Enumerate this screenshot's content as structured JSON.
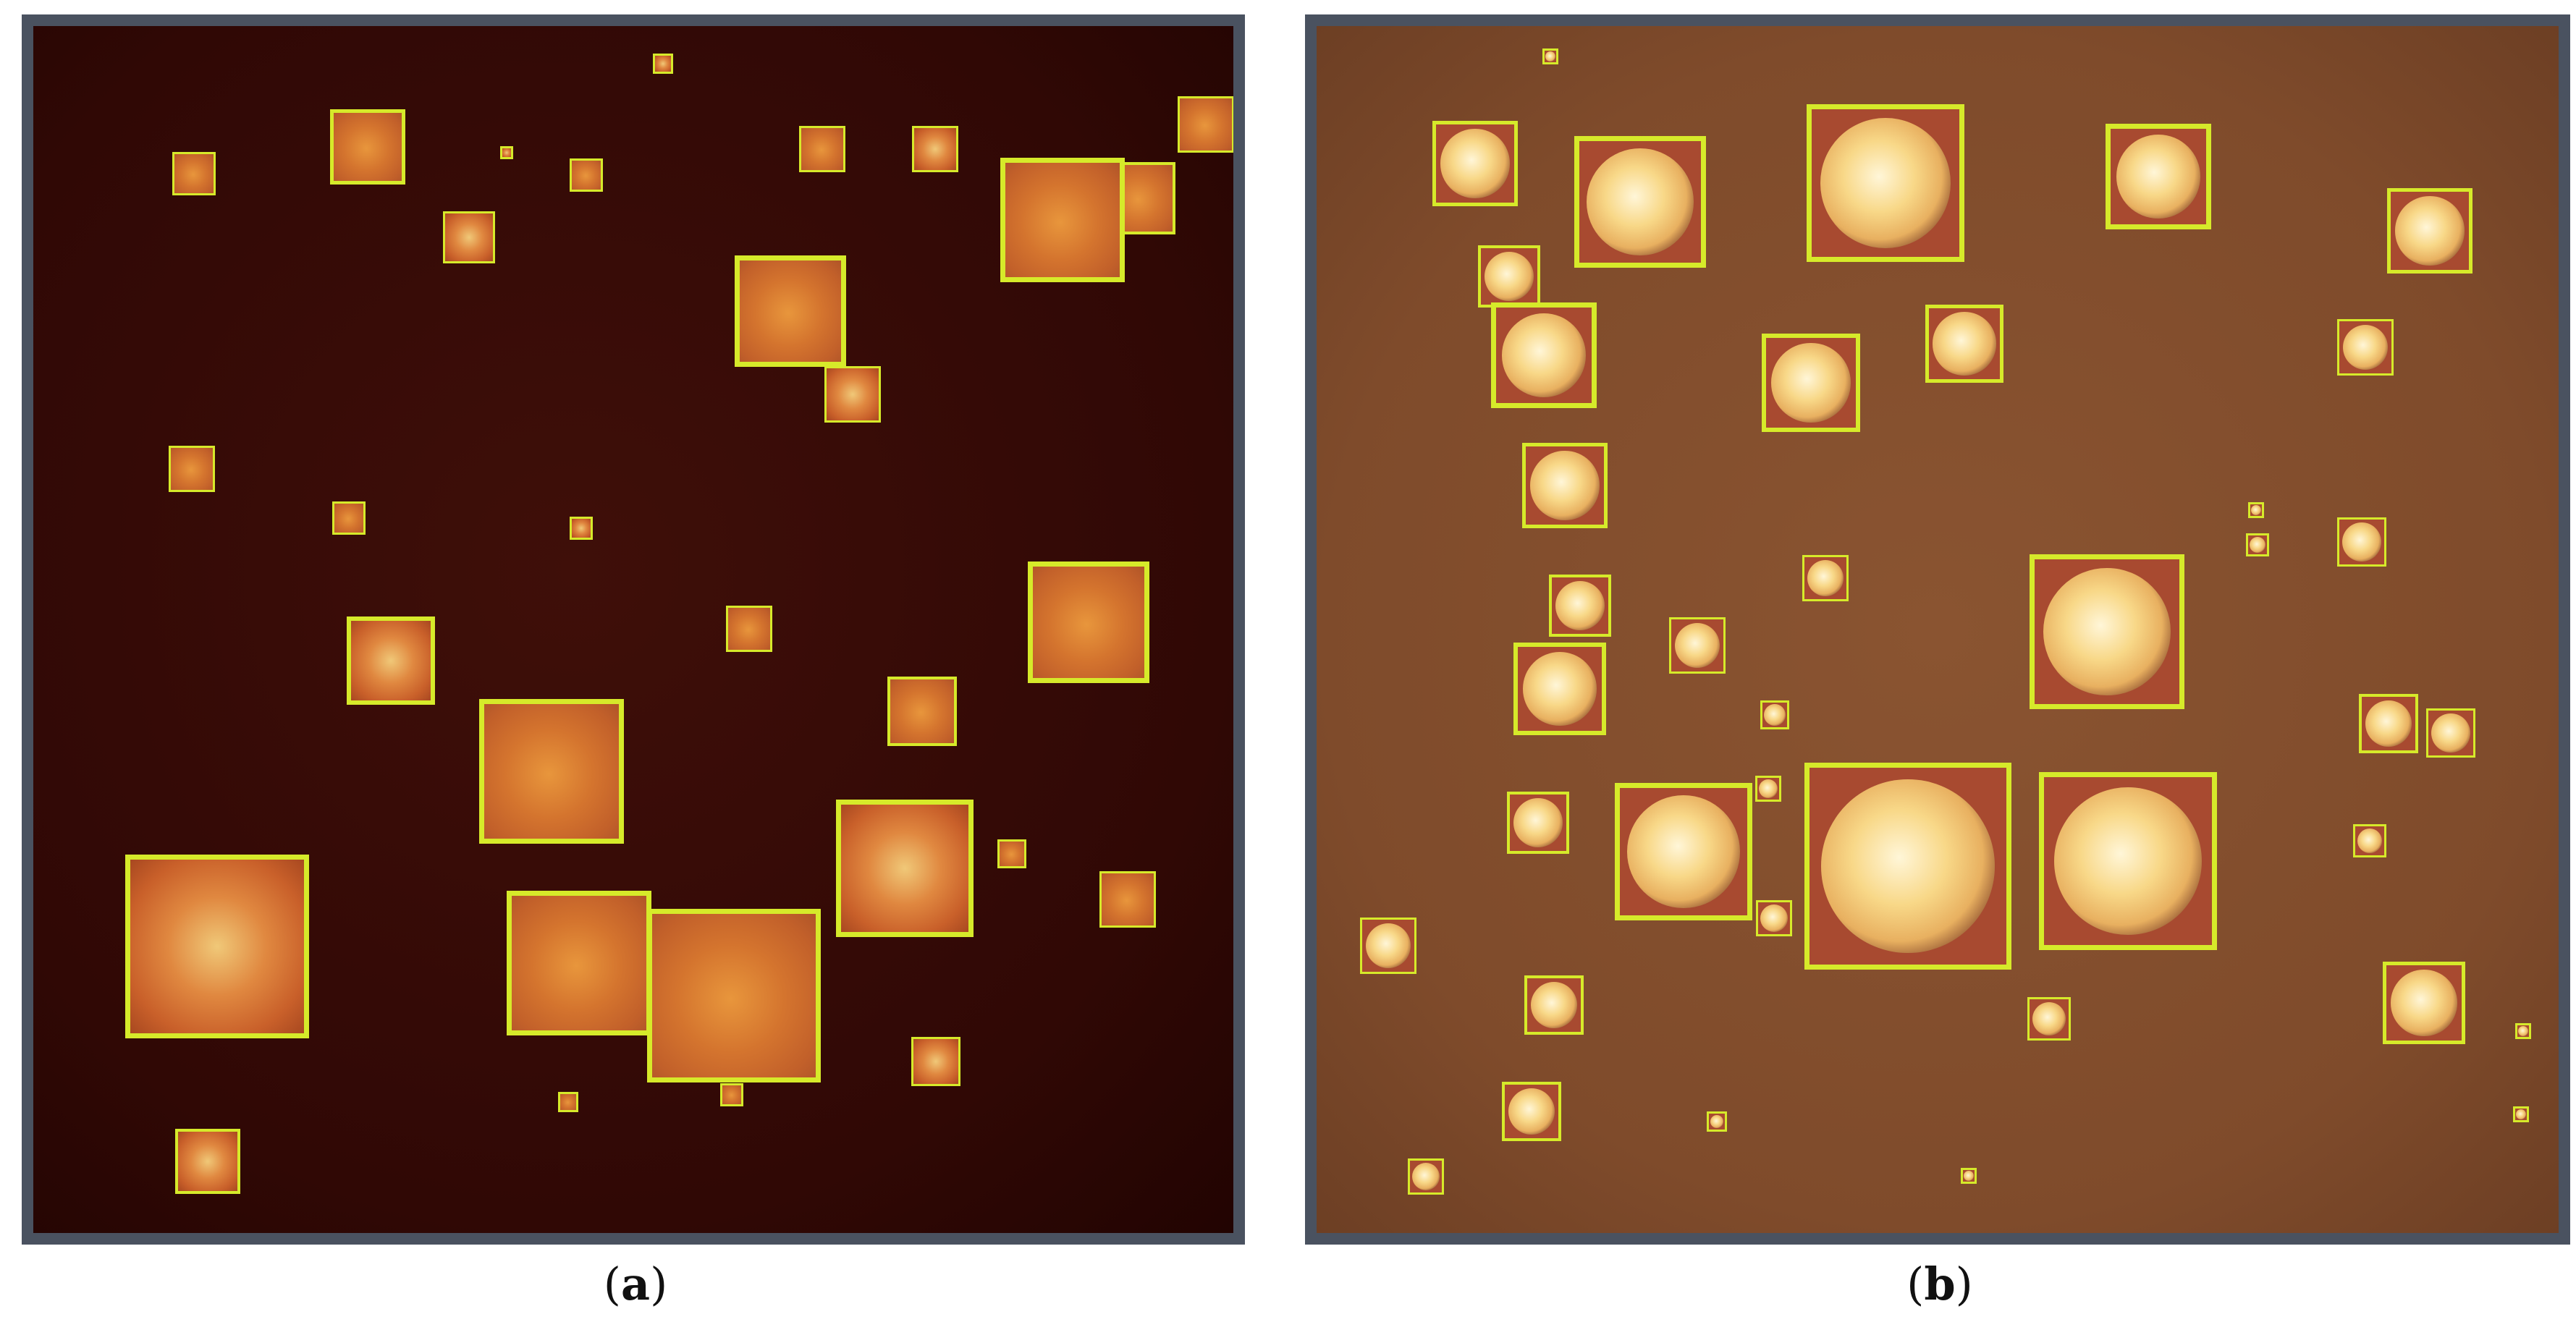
{
  "panels": [
    {
      "id": "a",
      "caption_open": "(",
      "caption_letter": "a",
      "caption_close": ")",
      "background_color": "#340a06",
      "box_color": "#d6ea2a"
    },
    {
      "id": "b",
      "caption_open": "(",
      "caption_letter": "b",
      "caption_close": ")",
      "background_color": "#84502e",
      "box_color": "#d6ea2a"
    }
  ]
}
